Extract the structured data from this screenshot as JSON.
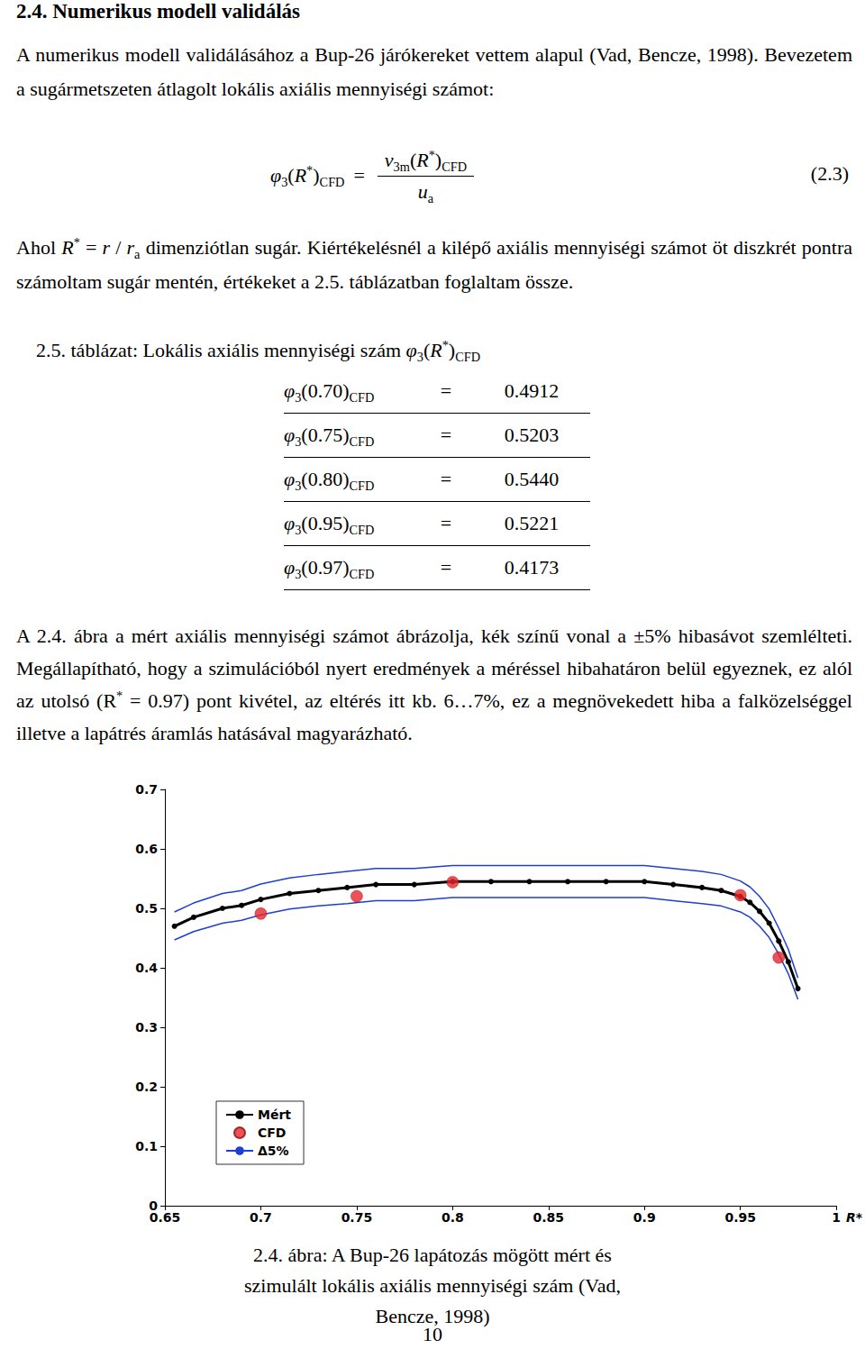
{
  "heading": "2.4. Numerikus modell validálás",
  "paragraph1": [
    {
      "text": "A numerikus modell validálásához a Bup-26 járókereket vettem alapul (Vad, Bencze, 1998). Bevezetem a sugármetszeten átlagolt lokális axiális mennyiségi számot:"
    }
  ],
  "equation": {
    "lhs": [
      {
        "text": "φ",
        "style": "italic"
      },
      {
        "text": "3",
        "style": "sub"
      },
      {
        "text": "("
      },
      {
        "text": "R",
        "style": "italic"
      },
      {
        "text": "*",
        "style": "sup"
      },
      {
        "text": ")"
      },
      {
        "text": "CFD",
        "style": "sub"
      }
    ],
    "relation": "=",
    "numerator": [
      {
        "text": "v",
        "style": "italic"
      },
      {
        "text": "3m",
        "style": "sub"
      },
      {
        "text": "("
      },
      {
        "text": "R",
        "style": "italic"
      },
      {
        "text": "*",
        "style": "sup"
      },
      {
        "text": ")"
      },
      {
        "text": "CFD",
        "style": "sub"
      }
    ],
    "denominator": [
      {
        "text": "u",
        "style": "italic"
      },
      {
        "text": "a",
        "style": "sub"
      }
    ],
    "number": "(2.3)"
  },
  "paragraph2": [
    {
      "text": "Ahol "
    },
    {
      "text": "R",
      "style": "italic"
    },
    {
      "text": "*",
      "style": "sup"
    },
    {
      "text": " = "
    },
    {
      "text": "r",
      "style": "italic"
    },
    {
      "text": " / "
    },
    {
      "text": "r",
      "style": "italic"
    },
    {
      "text": "a",
      "style": "sub"
    },
    {
      "text": " dimenziótlan sugár. Kiértékelésnél a kilépő axiális mennyiségi számot öt diszkrét pontra számoltam sugár mentén, értékeket a 2.5. táblázatban foglaltam össze."
    }
  ],
  "table_caption": [
    {
      "text": "2.5. táblázat: Lokális axiális mennyiségi szám "
    },
    {
      "text": "φ",
      "style": "italic"
    },
    {
      "text": "3",
      "style": "sub"
    },
    {
      "text": "("
    },
    {
      "text": "R",
      "style": "italic"
    },
    {
      "text": "*",
      "style": "sup"
    },
    {
      "text": ")"
    },
    {
      "text": "CFD",
      "style": "sub"
    }
  ],
  "table": {
    "symbol": "φ",
    "symbol_sub": "3",
    "arg_sub": "CFD",
    "relation": "=",
    "rows": [
      [
        "0.70",
        "0.4912"
      ],
      [
        "0.75",
        "0.5203"
      ],
      [
        "0.80",
        "0.5440"
      ],
      [
        "0.95",
        "0.5221"
      ],
      [
        "0.97",
        "0.4173"
      ]
    ]
  },
  "paragraph3": [
    {
      "text": "A 2.4. ábra a mért axiális mennyiségi számot ábrázolja, kék színű vonal a ±5% hibasávot szemlélteti. Megállapítható, hogy a szimulációból nyert eredmények a méréssel hibahatáron belül egyeznek, ez alól az utolsó (R"
    },
    {
      "text": "*",
      "style": "sup"
    },
    {
      "text": " = 0.97) pont kivétel, az eltérés itt kb. 6…7%, ez a megnövekedett hiba a falközelséggel illetve a lapátrés áramlás hatásával magyarázható."
    }
  ],
  "chart_data": {
    "type": "line",
    "xlabel": "R*",
    "xlim": [
      0.65,
      1
    ],
    "xticks": [
      0.65,
      0.7,
      0.75,
      0.8,
      0.85,
      0.9,
      0.95,
      1
    ],
    "ylim": [
      0,
      0.7
    ],
    "yticks": [
      0,
      0.1,
      0.2,
      0.3,
      0.4,
      0.5,
      0.6,
      0.7
    ],
    "grid": false,
    "legend": "lower left",
    "x": [
      0.655,
      0.665,
      0.68,
      0.69,
      0.7,
      0.715,
      0.73,
      0.745,
      0.76,
      0.78,
      0.8,
      0.82,
      0.84,
      0.86,
      0.88,
      0.9,
      0.915,
      0.93,
      0.94,
      0.95,
      0.955,
      0.96,
      0.965,
      0.97,
      0.975,
      0.98
    ],
    "series": [
      {
        "name": "Mért",
        "type": "line",
        "color": "#000000",
        "marker": "circle",
        "values": [
          0.47,
          0.485,
          0.5,
          0.505,
          0.515,
          0.525,
          0.53,
          0.535,
          0.54,
          0.54,
          0.545,
          0.545,
          0.545,
          0.545,
          0.545,
          0.545,
          0.54,
          0.535,
          0.53,
          0.52,
          0.51,
          0.495,
          0.475,
          0.445,
          0.41,
          0.365
        ]
      },
      {
        "name": "CFD",
        "type": "scatter",
        "color": "#e8262a",
        "marker": "circle",
        "x": [
          0.7,
          0.75,
          0.8,
          0.95,
          0.97
        ],
        "values": [
          0.4912,
          0.5203,
          0.544,
          0.5221,
          0.4173
        ]
      },
      {
        "name": "Δ5%",
        "type": "line",
        "color": "#1f3fd0",
        "marker": "none",
        "values": [
          0.494,
          0.509,
          0.525,
          0.53,
          0.541,
          0.551,
          0.557,
          0.562,
          0.567,
          0.567,
          0.572,
          0.572,
          0.572,
          0.572,
          0.572,
          0.572,
          0.567,
          0.562,
          0.557,
          0.546,
          0.536,
          0.52,
          0.499,
          0.467,
          0.431,
          0.383
        ]
      },
      {
        "name": "Δ5%",
        "type": "line",
        "color": "#1f3fd0",
        "marker": "none",
        "values": [
          0.447,
          0.461,
          0.475,
          0.48,
          0.489,
          0.499,
          0.504,
          0.508,
          0.513,
          0.513,
          0.518,
          0.518,
          0.518,
          0.518,
          0.518,
          0.518,
          0.513,
          0.508,
          0.504,
          0.494,
          0.485,
          0.47,
          0.451,
          0.423,
          0.39,
          0.347
        ]
      }
    ]
  },
  "figure_caption": "2.4. ábra: A Bup-26 lapátozás mögött mért és szimulált lokális axiális mennyiségi szám (Vad, Bencze, 1998)",
  "page_number": "10"
}
